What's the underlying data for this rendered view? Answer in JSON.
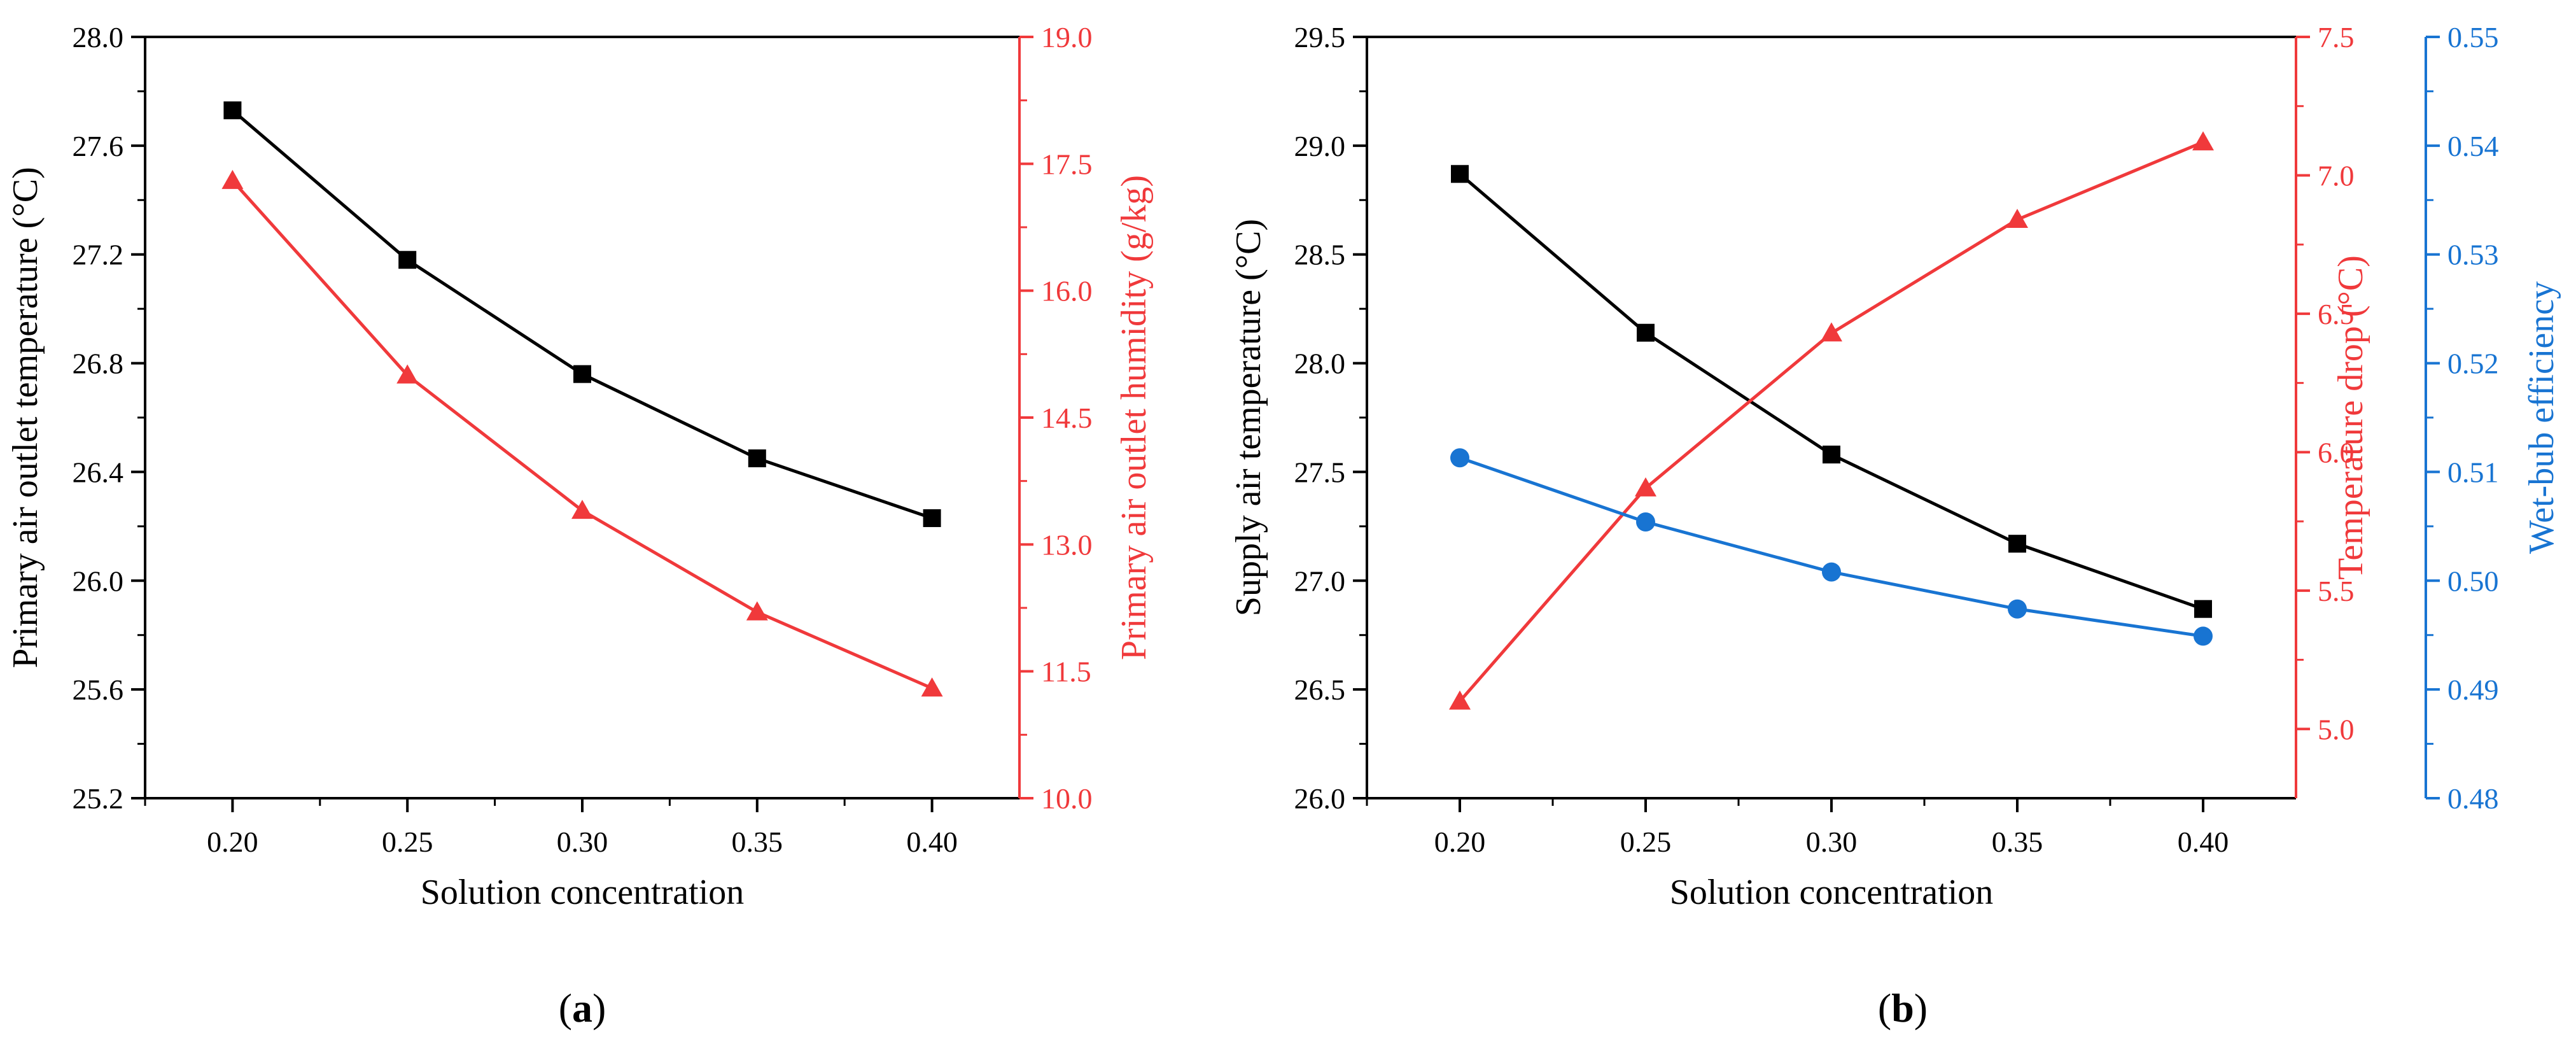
{
  "colors": {
    "black": "#000000",
    "red": "#f0393b",
    "blue": "#1874d2"
  },
  "chart_data": [
    {
      "type": "line",
      "panel_label": "(a)",
      "xlabel": "Solution concentration",
      "x": [
        0.2,
        0.25,
        0.3,
        0.35,
        0.4
      ],
      "x_tick_labels": [
        "0.20",
        "0.25",
        "0.30",
        "0.35",
        "0.40"
      ],
      "xlim": [
        0.175,
        0.425
      ],
      "axes": [
        {
          "side": "left",
          "label": "Primary air outlet temperature (°C)",
          "ylim": [
            25.2,
            28.0
          ],
          "ticks": [
            25.2,
            25.6,
            26.0,
            26.4,
            26.8,
            27.2,
            27.6,
            28.0
          ],
          "tick_labels": [
            "25.2",
            "25.6",
            "26.0",
            "26.4",
            "26.8",
            "27.2",
            "27.6",
            "28.0"
          ],
          "color": "#000000"
        },
        {
          "side": "right",
          "label": "Primary air outlet humidity (g/kg)",
          "ylim": [
            10.0,
            19.0
          ],
          "ticks": [
            10.0,
            11.5,
            13.0,
            14.5,
            16.0,
            17.5,
            19.0
          ],
          "tick_labels": [
            "10.0",
            "11.5",
            "13.0",
            "14.5",
            "16.0",
            "17.5",
            "19.0"
          ],
          "color": "#f0393b"
        }
      ],
      "series": [
        {
          "name": "Primary air outlet temperature",
          "axis": 0,
          "marker": "square",
          "color": "#000000",
          "values": [
            27.73,
            27.18,
            26.76,
            26.45,
            26.23
          ]
        },
        {
          "name": "Primary air outlet humidity",
          "axis": 1,
          "marker": "triangle",
          "color": "#f0393b",
          "values": [
            17.3,
            15.0,
            13.4,
            12.2,
            11.3
          ]
        }
      ]
    },
    {
      "type": "line",
      "panel_label": "(b)",
      "xlabel": "Solution concentration",
      "x": [
        0.2,
        0.25,
        0.3,
        0.35,
        0.4
      ],
      "x_tick_labels": [
        "0.20",
        "0.25",
        "0.30",
        "0.35",
        "0.40"
      ],
      "xlim": [
        0.175,
        0.425
      ],
      "axes": [
        {
          "side": "left",
          "label": "Supply air temperature (°C)",
          "ylim": [
            26.0,
            29.5
          ],
          "ticks": [
            26.0,
            26.5,
            27.0,
            27.5,
            28.0,
            28.5,
            29.0,
            29.5
          ],
          "tick_labels": [
            "26.0",
            "26.5",
            "27.0",
            "27.5",
            "28.0",
            "28.5",
            "29.0",
            "29.5"
          ],
          "color": "#000000"
        },
        {
          "side": "right",
          "label": "Temperature drop (°C)",
          "ylim": [
            4.75,
            7.5
          ],
          "ticks": [
            5.0,
            5.5,
            6.0,
            6.5,
            7.0,
            7.5
          ],
          "tick_labels": [
            "5.0",
            "5.5",
            "6.0",
            "6.5",
            "7.0",
            "7.5"
          ],
          "color": "#f0393b"
        },
        {
          "side": "right-outer",
          "label": "Wet-bub efficiency",
          "ylim": [
            0.48,
            0.55
          ],
          "ticks": [
            0.48,
            0.49,
            0.5,
            0.51,
            0.52,
            0.53,
            0.54,
            0.55
          ],
          "tick_labels": [
            "0.48",
            "0.49",
            "0.50",
            "0.51",
            "0.52",
            "0.53",
            "0.54",
            "0.55"
          ],
          "color": "#1874d2"
        }
      ],
      "series": [
        {
          "name": "Supply air temperature",
          "axis": 0,
          "marker": "square",
          "color": "#000000",
          "values": [
            28.87,
            28.14,
            27.58,
            27.17,
            26.87
          ]
        },
        {
          "name": "Temperature drop",
          "axis": 1,
          "marker": "triangle",
          "color": "#f0393b",
          "values": [
            5.1,
            5.87,
            6.43,
            6.84,
            7.12
          ]
        },
        {
          "name": "Wet-bub efficiency",
          "axis": 2,
          "marker": "circle",
          "color": "#1874d2",
          "values": [
            0.5113,
            0.5054,
            0.5008,
            0.4974,
            0.4949
          ]
        }
      ]
    }
  ]
}
